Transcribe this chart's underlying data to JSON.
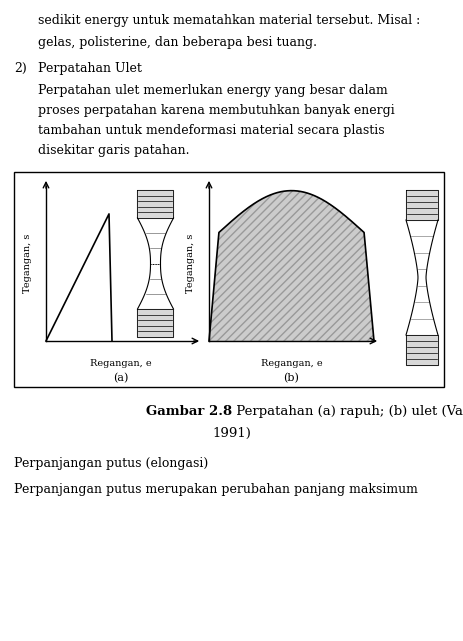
{
  "line1": "sedikit energy untuk mematahkan material tersebut. Misal :",
  "line2": "gelas, polisterine, dan beberapa besi tuang.",
  "num_label": "2)",
  "section_title": "Perpatahan Ulet",
  "para1": "Perpatahan ulet memerlukan energy yang besar dalam",
  "para2": "proses perpatahan karena membutuhkan banyak energi",
  "para3": "tambahan untuk mendeformasi material secara plastis",
  "para4": "disekitar garis patahan.",
  "ylabel_a": "Tegangan, s",
  "xlabel_a": "Regangan, e",
  "label_a": "(a)",
  "ylabel_b": "Tegangan, s",
  "xlabel_b": "Regangan, e",
  "label_b": "(b)",
  "caption_bold": "Gambar 2.8",
  "caption_normal": " Perpatahan (a) rapuh; (b) ulet (Van Vlack,",
  "caption_line2": "1991)",
  "bottom1": "Perpanjangan putus (elongasi)",
  "bottom2": "Perpanjangan putus merupakan perubahan panjang maksimum",
  "fill_color": "#cccccc",
  "hatch_pattern": "////",
  "hatch_color": "#999999",
  "figure_bg": "#ffffff",
  "font_size_text": 9.0,
  "font_size_label": 7.0,
  "font_size_caption": 9.5
}
